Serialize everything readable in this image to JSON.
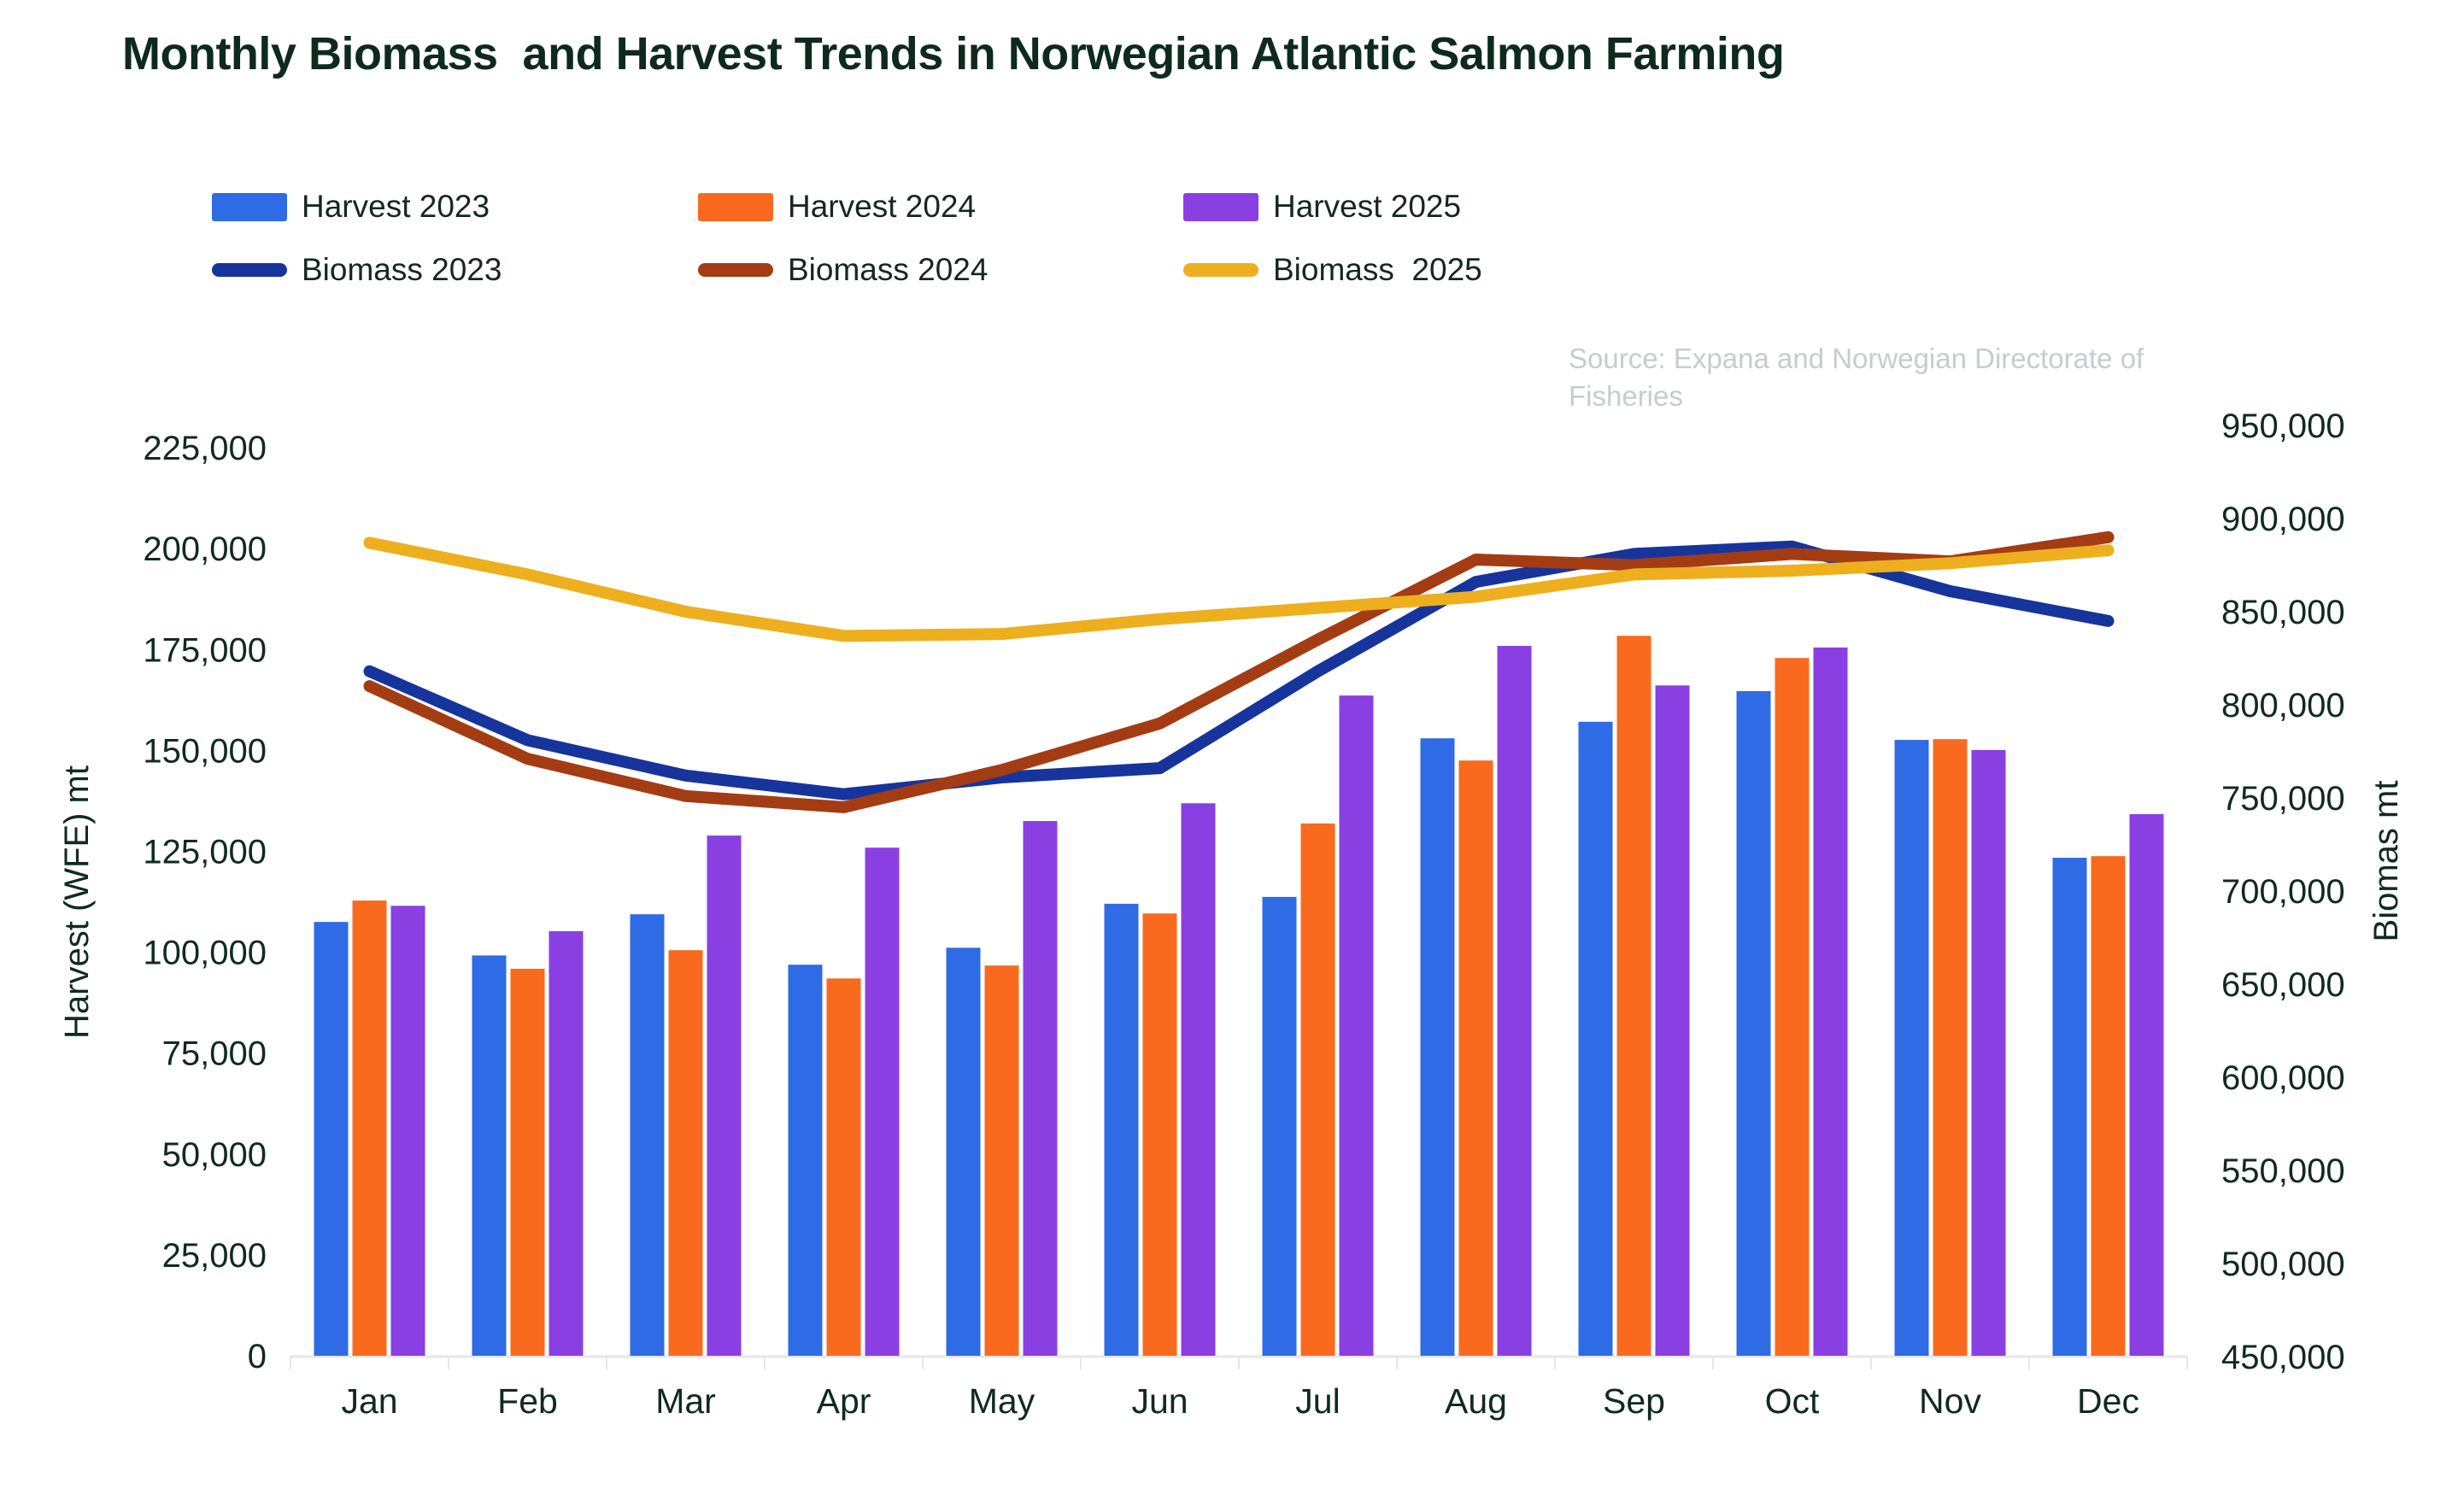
{
  "title": "Monthly Biomass  and Harvest Trends in Norwegian Atlantic Salmon Farming",
  "source_note": "Source: Expana and Norwegian Directorate of Fisheries",
  "colors": {
    "background": "#ffffff",
    "text_dark": "#102a20",
    "source_gray": "#c7ccd1",
    "axis_line": "#e5e7ea",
    "harvest_2023": "#2f6be4",
    "harvest_2024": "#f96a1e",
    "harvest_2025": "#8a3fe3",
    "biomass_2023": "#17349c",
    "biomass_2024": "#a43c13",
    "biomass_2025": "#eeaf1e"
  },
  "chart_data": {
    "type": "bar+line dual-axis combo",
    "title": "Monthly Biomass  and Harvest Trends in Norwegian Atlantic Salmon Farming",
    "grid": "off",
    "legend_position": "top-left, two rows",
    "categories": [
      "Jan",
      "Feb",
      "Mar",
      "Apr",
      "May",
      "Jun",
      "Jul",
      "Aug",
      "Sep",
      "Oct",
      "Nov",
      "Dec"
    ],
    "bar_series": [
      {
        "name": "Harvest 2023",
        "color": "#2f6be4",
        "axis": "left",
        "values": [
          107500,
          99200,
          109400,
          96900,
          101100,
          112000,
          113700,
          153000,
          157100,
          164700,
          152600,
          123400
        ]
      },
      {
        "name": "Harvest 2024",
        "color": "#f96a1e",
        "axis": "left",
        "values": [
          112800,
          95900,
          100500,
          93500,
          96700,
          109600,
          131900,
          147500,
          178400,
          172900,
          152800,
          123800
        ]
      },
      {
        "name": "Harvest 2025",
        "color": "#8a3fe3",
        "axis": "left",
        "values": [
          111500,
          105200,
          128900,
          125900,
          132500,
          136900,
          163600,
          175900,
          166100,
          175500,
          150100,
          134200
        ]
      }
    ],
    "line_series": [
      {
        "name": "Biomass 2023",
        "color": "#17349c",
        "axis": "right",
        "values": [
          818000,
          781000,
          762000,
          752000,
          761000,
          766000,
          818000,
          866000,
          881000,
          885000,
          861000,
          845000
        ]
      },
      {
        "name": "Biomass 2024",
        "color": "#a43c13",
        "axis": "right",
        "values": [
          810000,
          771000,
          751000,
          745000,
          765000,
          790000,
          835000,
          878000,
          875000,
          881000,
          877000,
          890000
        ]
      },
      {
        "name": "Biomass  2025",
        "color": "#eeaf1e",
        "axis": "right",
        "values": [
          887000,
          870000,
          850000,
          837000,
          838000,
          846000,
          852000,
          858000,
          870000,
          872000,
          876000,
          883000
        ]
      }
    ],
    "left_axis": {
      "title": "Harvest (WFE) mt",
      "min": 0,
      "max": 225000,
      "step": 25000,
      "ticks": [
        "0",
        "25,000",
        "50,000",
        "75,000",
        "100,000",
        "125,000",
        "150,000",
        "175,000",
        "200,000",
        "225,000"
      ]
    },
    "right_axis": {
      "title": "Biomas mt",
      "min": 450000,
      "max": 950000,
      "step": 50000,
      "ticks": [
        "450,000",
        "500,000",
        "550,000",
        "600,000",
        "650,000",
        "700,000",
        "750,000",
        "800,000",
        "850,000",
        "900,000",
        "950,000"
      ]
    }
  }
}
